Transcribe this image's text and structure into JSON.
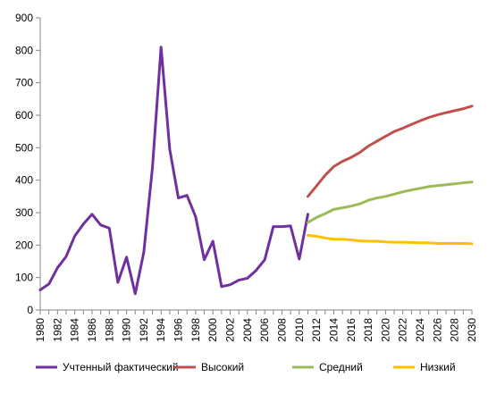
{
  "chart_data": {
    "type": "line",
    "title": "",
    "xlabel": "",
    "ylabel": "",
    "xlim": [
      1980,
      2030
    ],
    "ylim": [
      0,
      900
    ],
    "y_ticks": [
      0,
      100,
      200,
      300,
      400,
      500,
      600,
      700,
      800,
      900
    ],
    "x_ticks": [
      1980,
      1982,
      1984,
      1986,
      1988,
      1990,
      1992,
      1994,
      1996,
      1998,
      2000,
      2002,
      2004,
      2006,
      2008,
      2010,
      2012,
      2014,
      2016,
      2018,
      2020,
      2022,
      2024,
      2026,
      2028,
      2030
    ],
    "x_tick_labels": [
      "1980",
      "1982",
      "1984",
      "1986",
      "1988",
      "1990",
      "1992",
      "1994",
      "1996",
      "1998",
      "2000",
      "2002",
      "2004",
      "2006",
      "2008",
      "2010",
      "2012",
      "2014",
      "2016",
      "2018",
      "2020",
      "2022",
      "2024",
      "2026",
      "2028",
      "2030"
    ],
    "y_tick_labels": [
      "0",
      "100",
      "200",
      "300",
      "400",
      "500",
      "600",
      "700",
      "800",
      "900"
    ],
    "grid": false,
    "legend_position": "bottom",
    "series": [
      {
        "name": "Учтенный фактический",
        "color": "#7030a0",
        "x": [
          1980,
          1981,
          1982,
          1983,
          1984,
          1985,
          1986,
          1987,
          1988,
          1989,
          1990,
          1991,
          1992,
          1993,
          1994,
          1995,
          1996,
          1997,
          1998,
          1999,
          2000,
          2001,
          2002,
          2003,
          2004,
          2005,
          2006,
          2007,
          2008,
          2009,
          2010,
          2011
        ],
        "y": [
          62,
          80,
          130,
          165,
          228,
          265,
          295,
          262,
          252,
          85,
          163,
          50,
          178,
          440,
          810,
          495,
          345,
          353,
          287,
          155,
          212,
          72,
          78,
          92,
          98,
          122,
          155,
          257,
          257,
          259,
          157,
          295
        ]
      },
      {
        "name": "Высокий",
        "color": "#c0504d",
        "x": [
          2011,
          2012,
          2013,
          2014,
          2015,
          2016,
          2017,
          2018,
          2019,
          2020,
          2021,
          2022,
          2023,
          2024,
          2025,
          2026,
          2027,
          2028,
          2029,
          2030
        ],
        "y": [
          350,
          382,
          415,
          442,
          458,
          470,
          485,
          505,
          520,
          535,
          550,
          560,
          572,
          583,
          593,
          601,
          608,
          614,
          620,
          628
        ]
      },
      {
        "name": "Средний",
        "color": "#9bbb59",
        "x": [
          2011,
          2012,
          2013,
          2014,
          2015,
          2016,
          2017,
          2018,
          2019,
          2020,
          2021,
          2022,
          2023,
          2024,
          2025,
          2026,
          2027,
          2028,
          2029,
          2030
        ],
        "y": [
          270,
          285,
          297,
          310,
          315,
          320,
          327,
          338,
          345,
          350,
          357,
          364,
          370,
          375,
          380,
          383,
          386,
          389,
          392,
          394
        ]
      },
      {
        "name": "Низкий",
        "color": "#ffc000",
        "x": [
          2011,
          2012,
          2013,
          2014,
          2015,
          2016,
          2017,
          2018,
          2019,
          2020,
          2021,
          2022,
          2023,
          2024,
          2025,
          2026,
          2027,
          2028,
          2029,
          2030
        ],
        "y": [
          230,
          227,
          222,
          218,
          218,
          216,
          213,
          212,
          212,
          210,
          209,
          209,
          208,
          207,
          207,
          205,
          205,
          205,
          205,
          204
        ]
      }
    ]
  }
}
